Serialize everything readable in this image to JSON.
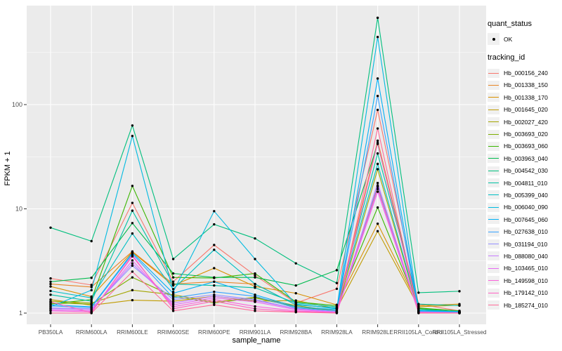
{
  "chart_data": {
    "type": "line",
    "title": "",
    "xlabel": "sample_name",
    "ylabel": "FPKM + 1",
    "y_scale": "log10",
    "y_ticks": [
      1,
      10,
      100
    ],
    "y_minor_ticks": [
      3.162,
      31.62,
      316.2
    ],
    "x_categories": [
      "PB350LA",
      "RRIM600LA",
      "RRIM600LE",
      "RRIM600SE",
      "RRIM600PE",
      "RRIM901LA",
      "RRIM928BA",
      "RRIM928LA",
      "RRIM928LE",
      "RRII105LA_Control",
      "RRII105LA_Stressed"
    ],
    "legend_quant": {
      "title": "quant_status",
      "items": [
        {
          "label": "OK",
          "marker": "black-point"
        }
      ]
    },
    "legend_tracking": {
      "title": "tracking_id"
    },
    "colors": {
      "panel_bg": "#ebebeb",
      "grid": "#ffffff",
      "tick": "#333333",
      "tick_label": "#4d4d4d",
      "point": "#000000",
      "legend_key_bg": "#f0f0f0"
    },
    "series": [
      {
        "name": "Hb_000156_240",
        "color": "#F8766D",
        "values": [
          2.15,
          1.86,
          11.4,
          2.0,
          4.5,
          2.3,
          1.25,
          1.71,
          89,
          1.22,
          1.05
        ]
      },
      {
        "name": "Hb_001338_150",
        "color": "#E88526",
        "values": [
          1.9,
          1.78,
          3.9,
          1.9,
          2.0,
          1.9,
          1.2,
          1.12,
          45,
          1.1,
          1.03
        ]
      },
      {
        "name": "Hb_001338_170",
        "color": "#D89000",
        "values": [
          1.8,
          1.44,
          3.85,
          1.84,
          2.7,
          1.8,
          1.55,
          1.2,
          7.2,
          1.18,
          1.22
        ]
      },
      {
        "name": "Hb_001645_020",
        "color": "#C09B00",
        "values": [
          1.35,
          1.19,
          1.33,
          1.3,
          1.45,
          1.3,
          1.32,
          1.1,
          6.1,
          1.15,
          1.19
        ]
      },
      {
        "name": "Hb_002027_420",
        "color": "#A3A500",
        "values": [
          1.3,
          1.25,
          1.66,
          1.5,
          1.28,
          1.42,
          1.18,
          1.05,
          24,
          1.05,
          1.02
        ]
      },
      {
        "name": "Hb_003693_020",
        "color": "#7CAE00",
        "values": [
          1.25,
          1.22,
          2.2,
          1.45,
          1.25,
          1.4,
          1.15,
          1.05,
          16.3,
          1.04,
          1.02
        ]
      },
      {
        "name": "Hb_003693_060",
        "color": "#39B600",
        "values": [
          1.22,
          1.35,
          16.6,
          2.2,
          2.17,
          2.4,
          1.28,
          1.18,
          10.3,
          1.12,
          1.05
        ]
      },
      {
        "name": "Hb_003963_040",
        "color": "#00BB4E",
        "values": [
          2.0,
          2.18,
          7.3,
          2.4,
          2.2,
          2.2,
          1.84,
          2.58,
          42,
          1.1,
          1.03
        ]
      },
      {
        "name": "Hb_004542_030",
        "color": "#00BF7D",
        "values": [
          6.6,
          4.9,
          63,
          3.3,
          7.1,
          5.2,
          3.0,
          1.94,
          680,
          1.57,
          1.62
        ]
      },
      {
        "name": "Hb_004811_010",
        "color": "#00C1A3",
        "values": [
          1.5,
          1.3,
          9.6,
          1.9,
          1.84,
          1.75,
          1.25,
          1.15,
          34,
          1.22,
          1.18
        ]
      },
      {
        "name": "Hb_005399_040",
        "color": "#00BFC4",
        "values": [
          1.63,
          1.4,
          5.8,
          1.7,
          4.05,
          1.9,
          1.2,
          1.12,
          27,
          1.07,
          1.04
        ]
      },
      {
        "name": "Hb_006040_090",
        "color": "#00BAE0",
        "values": [
          1.15,
          1.66,
          50,
          1.6,
          9.5,
          3.3,
          1.22,
          1.1,
          445,
          1.06,
          1.03
        ]
      },
      {
        "name": "Hb_007645_060",
        "color": "#00B0F6",
        "values": [
          1.2,
          1.15,
          3.8,
          1.55,
          2.0,
          1.5,
          1.15,
          1.08,
          178,
          1.05,
          1.02
        ]
      },
      {
        "name": "Hb_027638_010",
        "color": "#35A2FF",
        "values": [
          1.17,
          1.13,
          3.7,
          1.4,
          1.6,
          1.45,
          1.12,
          1.05,
          121,
          1.03,
          1.01
        ]
      },
      {
        "name": "Hb_031194_010",
        "color": "#9590FF",
        "values": [
          1.12,
          1.1,
          2.85,
          1.35,
          1.5,
          1.35,
          1.1,
          1.03,
          16.8,
          1.03,
          1.01
        ]
      },
      {
        "name": "Hb_088080_040",
        "color": "#C77CFF",
        "values": [
          1.1,
          1.08,
          3.0,
          1.25,
          1.45,
          1.32,
          1.1,
          1.02,
          17.7,
          1.02,
          1.01
        ]
      },
      {
        "name": "Hb_103465_010",
        "color": "#E76BF3",
        "values": [
          1.07,
          1.05,
          3.2,
          1.2,
          1.4,
          1.28,
          1.08,
          1.02,
          14.6,
          1.02,
          1.0
        ]
      },
      {
        "name": "Hb_149598_010",
        "color": "#FA62DB",
        "values": [
          1.05,
          1.03,
          3.5,
          1.15,
          1.35,
          1.16,
          1.05,
          1.01,
          15.5,
          1.01,
          1.0
        ]
      },
      {
        "name": "Hb_179142_010",
        "color": "#FF61C3",
        "values": [
          1.28,
          1.01,
          3.6,
          1.1,
          1.3,
          1.1,
          1.03,
          1.01,
          43,
          1.01,
          1.0
        ]
      },
      {
        "name": "Hb_185274_010",
        "color": "#FF6A98",
        "values": [
          1.0,
          1.0,
          2.5,
          1.05,
          1.2,
          1.05,
          1.02,
          1.0,
          59,
          1.0,
          1.0
        ]
      }
    ]
  }
}
